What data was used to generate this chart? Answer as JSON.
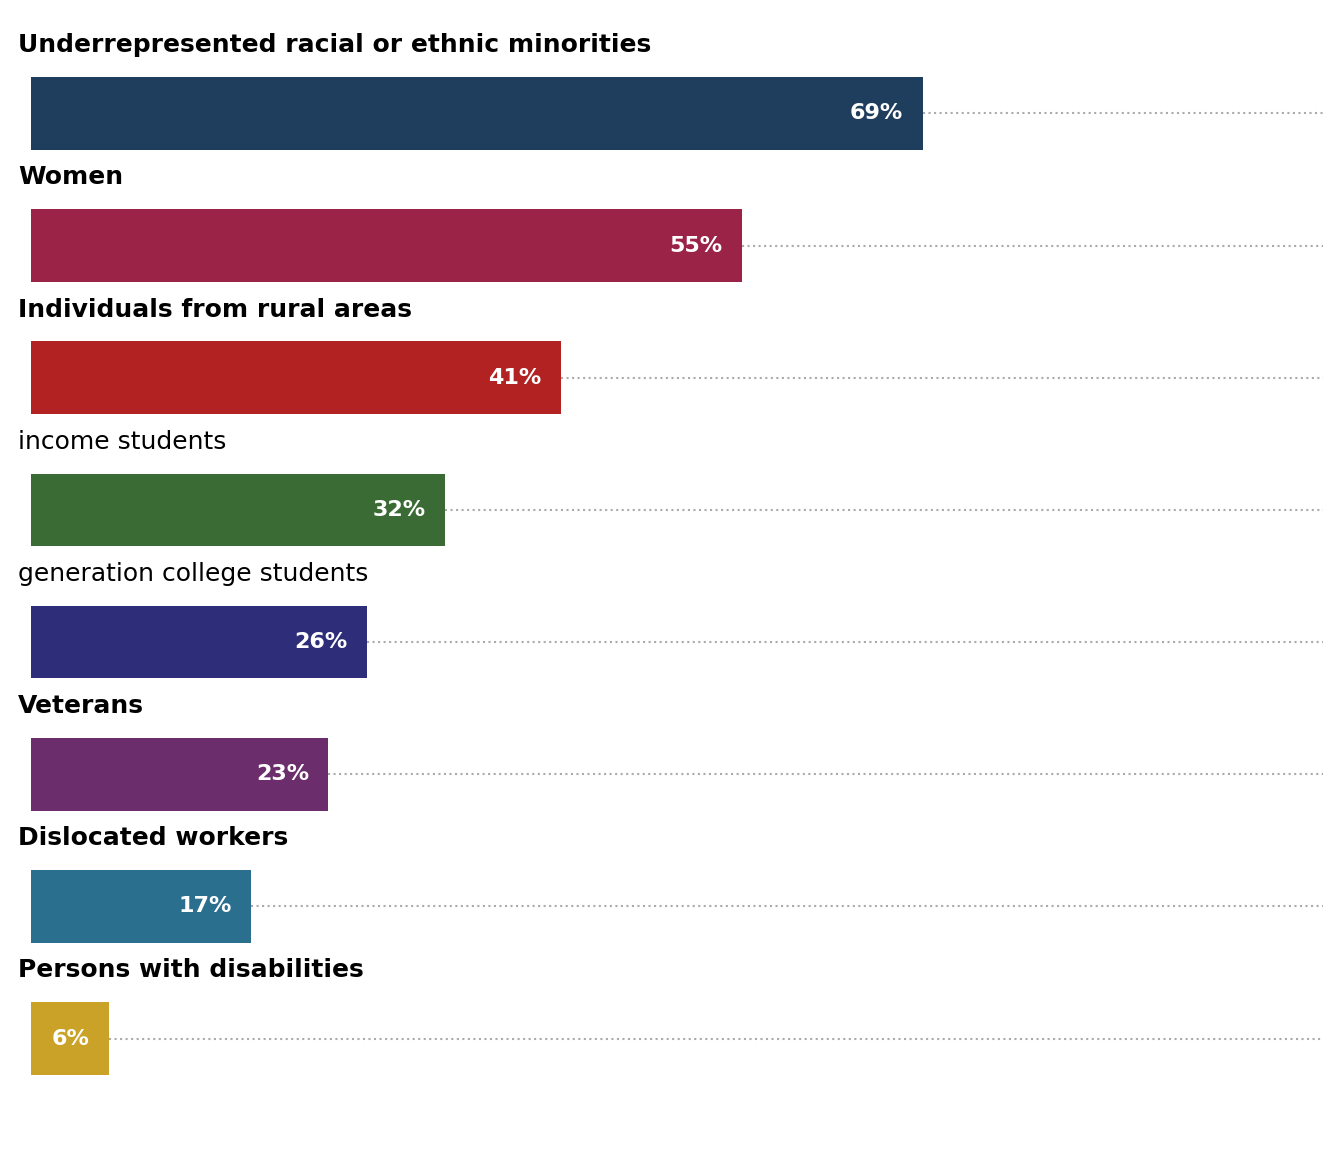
{
  "categories": [
    "Underrepresented racial or ethnic minorities",
    "Women",
    "Individuals from rural areas",
    "income students",
    "generation college students",
    "Veterans",
    "Dislocated workers",
    "Persons with disabilities"
  ],
  "values": [
    69,
    55,
    41,
    32,
    26,
    23,
    17,
    6
  ],
  "colors": [
    "#1f3d5c",
    "#9b2348",
    "#b22222",
    "#3a6b35",
    "#2e2d7a",
    "#6b2d6b",
    "#2a6f8e",
    "#c9a227"
  ],
  "label_bold": [
    true,
    true,
    true,
    false,
    false,
    true,
    true,
    true
  ],
  "x_max": 100,
  "bar_height": 0.55,
  "background_color": "#ffffff",
  "text_color": "#ffffff",
  "label_color": "#000000",
  "dotted_line_color": "#aaaaaa",
  "value_fontsize": 16,
  "label_fontsize": 18
}
